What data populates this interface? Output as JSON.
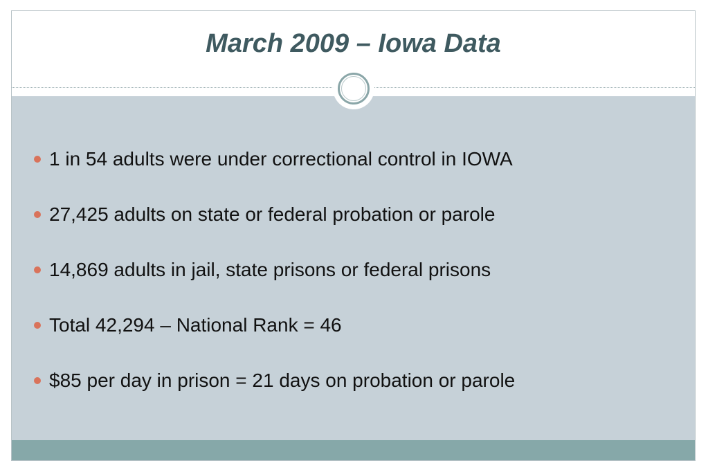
{
  "slide": {
    "title": "March 2009 – Iowa Data",
    "bullets": [
      "1 in 54 adults were under correctional control in IOWA",
      "27,425 adults on state or federal probation or parole",
      "14,869 adults in jail, state prisons or federal prisons",
      "Total 42,294 – National Rank = 46",
      "$85 per day in prison = 21 days on probation or parole"
    ]
  },
  "colors": {
    "title_text": "#3f5a60",
    "body_panel": "#c6d1d8",
    "footer_band": "#86a8a9",
    "bullet_marker": "#d9735b",
    "ring": "#8aa6a8"
  }
}
